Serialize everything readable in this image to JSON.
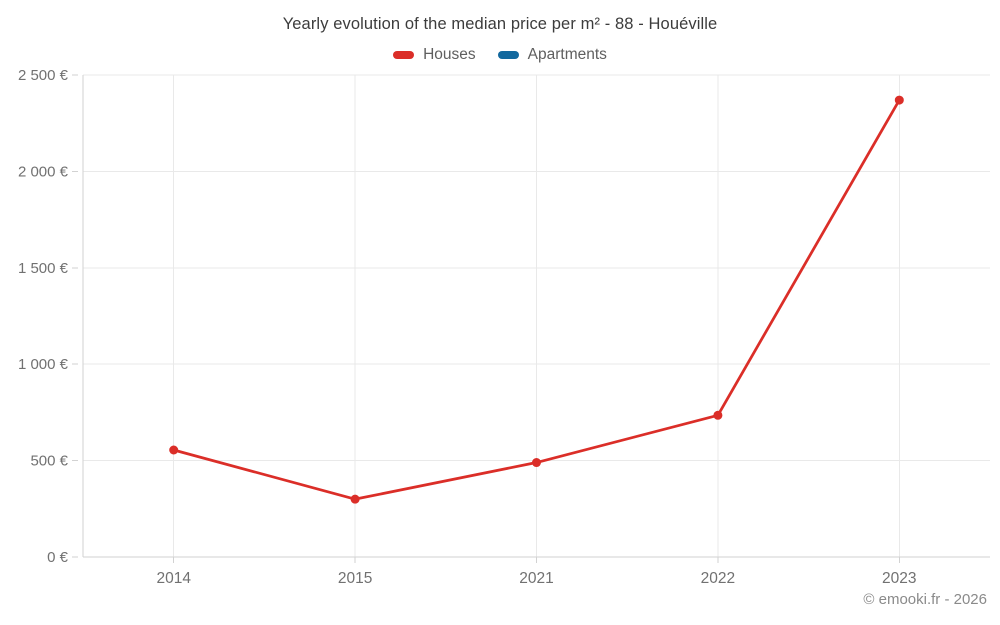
{
  "header": {
    "title": "Yearly evolution of the median price per m² - 88 - Houéville"
  },
  "legend": {
    "items": [
      {
        "label": "Houses",
        "color": "#db2e28"
      },
      {
        "label": "Apartments",
        "color": "#12689e"
      }
    ]
  },
  "axes": {
    "y_tick_labels": [
      "0 €",
      "500 €",
      "1 000 €",
      "1 500 €",
      "2 000 €",
      "2 500 €"
    ],
    "x_tick_labels": [
      "2014",
      "2015",
      "2021",
      "2022",
      "2023"
    ]
  },
  "footer": {
    "credit": "© emooki.fr - 2026"
  },
  "chart_data": {
    "type": "line",
    "title": "Yearly evolution of the median price per m² - 88 - Houéville",
    "categories": [
      "2014",
      "2015",
      "2021",
      "2022",
      "2023"
    ],
    "series": [
      {
        "name": "Houses",
        "color": "#db2e28",
        "values": [
          555,
          300,
          490,
          735,
          2370
        ]
      },
      {
        "name": "Apartments",
        "color": "#12689e",
        "values": []
      }
    ],
    "xlabel": "",
    "ylabel": "",
    "ylim": [
      0,
      2500
    ],
    "ytick_step": 500,
    "grid": true,
    "legend_position": "top",
    "markers": true
  }
}
